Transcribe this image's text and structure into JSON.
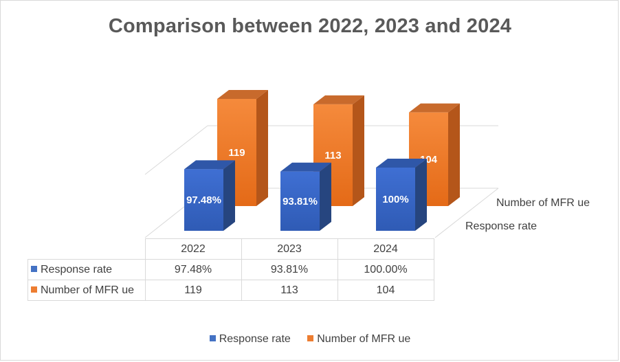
{
  "chart_data": {
    "type": "bar",
    "subtype": "3d-column",
    "title": "Comparison between 2022, 2023 and 2024",
    "categories": [
      "2022",
      "2023",
      "2024"
    ],
    "series": [
      {
        "name": "Response rate",
        "color": "#4472c4",
        "values": [
          97.48,
          93.81,
          100.0
        ],
        "data_labels": [
          "97.48%",
          "93.81%",
          "100%"
        ],
        "table_values": [
          "97.48%",
          "93.81%",
          "100.00%"
        ]
      },
      {
        "name": "Number of MFR ue",
        "color": "#ed7d31",
        "values": [
          119,
          113,
          104
        ],
        "data_labels": [
          "119",
          "113",
          "104"
        ],
        "table_values": [
          "119",
          "113",
          "104"
        ]
      }
    ],
    "legend_position": "bottom",
    "data_table": true,
    "gridlines": true
  }
}
